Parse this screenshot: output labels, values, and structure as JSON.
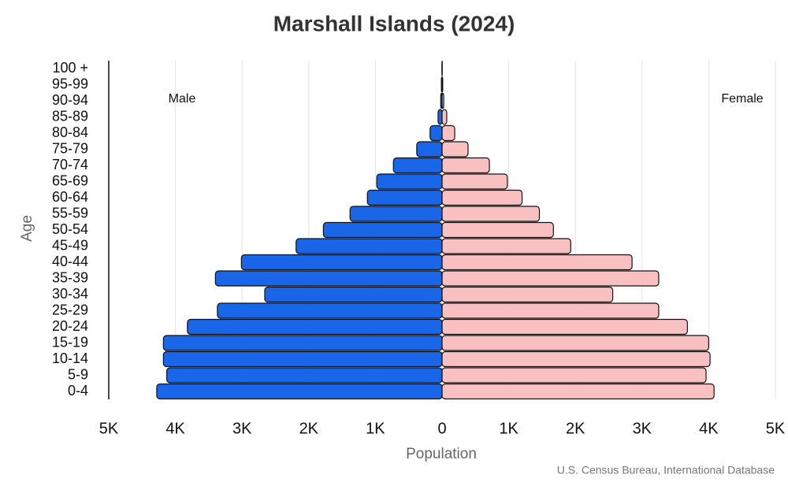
{
  "chart_data": {
    "type": "pyramid",
    "title": "Marshall Islands (2024)",
    "x_label": "Population",
    "y_label": "Age",
    "source": "U.S. Census Bureau, International Database",
    "categories": [
      "0-4",
      "5-9",
      "10-14",
      "15-19",
      "20-24",
      "25-29",
      "30-34",
      "35-39",
      "40-44",
      "45-49",
      "50-54",
      "55-59",
      "60-64",
      "65-69",
      "70-74",
      "75-79",
      "80-84",
      "85-89",
      "90-94",
      "95-99",
      "100 +"
    ],
    "series": [
      {
        "name": "Male",
        "color": "#1a66e8",
        "values": [
          -4280,
          -4130,
          -4180,
          -4180,
          -3820,
          -3370,
          -2660,
          -3400,
          -3010,
          -2190,
          -1780,
          -1380,
          -1120,
          -980,
          -730,
          -380,
          -180,
          -60,
          -20,
          -10,
          -2
        ]
      },
      {
        "name": "Female",
        "color": "#f9c0c1",
        "values": [
          4080,
          3960,
          4020,
          4000,
          3680,
          3250,
          2560,
          3250,
          2850,
          1930,
          1670,
          1460,
          1200,
          980,
          710,
          390,
          190,
          70,
          25,
          10,
          3
        ]
      }
    ],
    "xlim": [
      -5000,
      5000
    ],
    "xticks": [
      {
        "value": -5000,
        "label": "5K"
      },
      {
        "value": -4000,
        "label": "4K"
      },
      {
        "value": -3000,
        "label": "3K"
      },
      {
        "value": -2000,
        "label": "2K"
      },
      {
        "value": -1000,
        "label": "1K"
      },
      0,
      {
        "value": 1000,
        "label": "1K"
      },
      {
        "value": 2000,
        "label": "2K"
      },
      {
        "value": 3000,
        "label": "3K"
      },
      {
        "value": 4000,
        "label": "4K"
      },
      {
        "value": 5000,
        "label": "5K"
      }
    ],
    "grid": true
  }
}
